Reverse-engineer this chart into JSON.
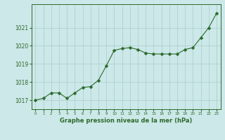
{
  "hours": [
    0,
    1,
    2,
    3,
    4,
    5,
    6,
    7,
    8,
    9,
    10,
    11,
    12,
    13,
    14,
    15,
    16,
    17,
    18,
    19,
    20,
    21,
    22,
    23
  ],
  "pressure": [
    1017.0,
    1017.1,
    1017.4,
    1017.4,
    1017.1,
    1017.4,
    1017.7,
    1017.75,
    1018.1,
    1018.9,
    1019.75,
    1019.85,
    1019.9,
    1019.8,
    1019.6,
    1019.55,
    1019.55,
    1019.55,
    1019.55,
    1019.8,
    1019.9,
    1020.45,
    1021.0,
    1021.8
  ],
  "line_color": "#2d6a2d",
  "marker_color": "#2d6a2d",
  "bg_color": "#cce8e8",
  "grid_color": "#aacccc",
  "title_color": "#2d6a2d",
  "ylim_min": 1016.5,
  "ylim_max": 1022.3,
  "yticks": [
    1017,
    1018,
    1019,
    1020,
    1021
  ],
  "xlabel": "Graphe pression niveau de la mer (hPa)",
  "marker_size": 2.5,
  "line_width": 0.8
}
